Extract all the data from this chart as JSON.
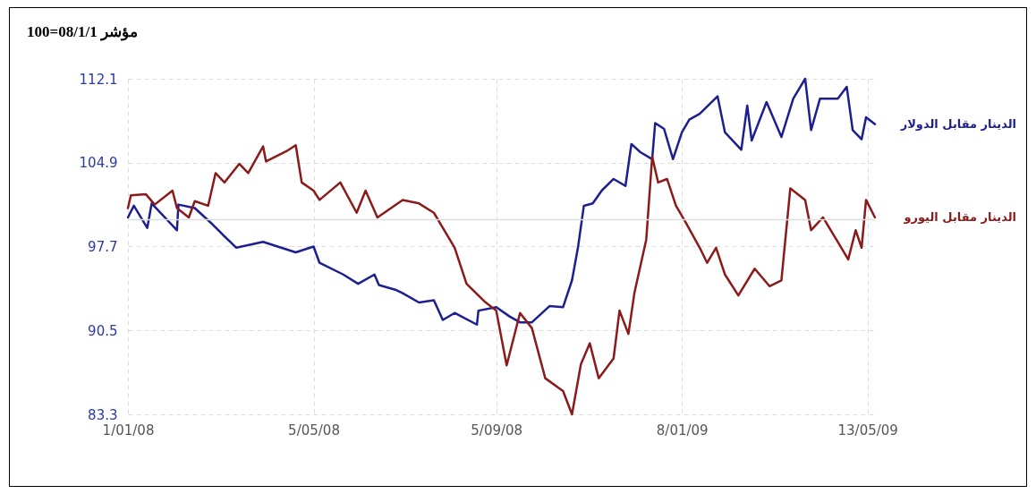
{
  "chart_data": {
    "type": "line",
    "title": "100=08/1/1 مؤشر",
    "xlim": [
      "2008-01-01",
      "2009-05-18"
    ],
    "xticks": [
      {
        "value": "2008-01-01",
        "label": "1/01/08"
      },
      {
        "value": "2008-05-05",
        "label": "5/05/08"
      },
      {
        "value": "2008-09-05",
        "label": "5/09/08"
      },
      {
        "value": "2009-01-08",
        "label": "8/01/09"
      },
      {
        "value": "2009-05-13",
        "label": "13/05/09"
      }
    ],
    "ylim": [
      83.3,
      112.1
    ],
    "yticks": [
      83.3,
      90.5,
      97.7,
      104.9,
      112.1
    ],
    "grid": true,
    "legend": "right",
    "line_style": "solid",
    "ref_lines": [
      {
        "axis": "y",
        "value": 100,
        "color": "#dddddd"
      }
    ],
    "series": [
      {
        "name": "الدينار مقابل الدولار",
        "color": "#1c1f8f",
        "x": [
          "2008-01-01",
          "2008-01-05",
          "2008-01-14",
          "2008-01-17",
          "2008-02-03",
          "2008-02-04",
          "2008-02-15",
          "2008-02-27",
          "2008-03-05",
          "2008-03-14",
          "2008-04-01",
          "2008-04-23",
          "2008-05-05",
          "2008-05-09",
          "2008-05-25",
          "2008-06-04",
          "2008-06-15",
          "2008-06-18",
          "2008-06-29",
          "2008-07-04",
          "2008-07-15",
          "2008-07-25",
          "2008-07-31",
          "2008-08-08",
          "2008-08-23",
          "2008-08-24",
          "2008-09-05",
          "2008-09-14",
          "2008-09-21",
          "2008-09-29",
          "2008-10-11",
          "2008-10-20",
          "2008-10-26",
          "2008-10-30",
          "2008-11-03",
          "2008-11-09",
          "2008-11-15",
          "2008-11-23",
          "2008-12-01",
          "2008-12-05",
          "2008-12-11",
          "2008-12-19",
          "2008-12-21",
          "2008-12-27",
          "2009-01-02",
          "2009-01-08",
          "2009-01-13",
          "2009-01-20",
          "2009-02-01",
          "2009-02-06",
          "2009-02-17",
          "2009-02-21",
          "2009-02-24",
          "2009-03-06",
          "2009-03-16",
          "2009-03-24",
          "2009-04-01",
          "2009-04-05",
          "2009-04-11",
          "2009-04-23",
          "2009-04-29",
          "2009-05-03",
          "2009-05-09",
          "2009-05-12",
          "2009-05-18"
        ],
        "values": [
          100.2,
          101.2,
          99.3,
          101.4,
          99.1,
          101.3,
          101.0,
          99.6,
          98.7,
          97.6,
          98.1,
          97.2,
          97.7,
          96.3,
          95.3,
          94.5,
          95.3,
          94.4,
          94.0,
          93.7,
          92.9,
          93.1,
          91.4,
          92.0,
          91.0,
          92.2,
          92.5,
          91.7,
          91.2,
          91.2,
          92.6,
          92.5,
          94.8,
          97.6,
          101.2,
          101.4,
          102.5,
          103.5,
          102.9,
          106.5,
          105.8,
          105.2,
          108.3,
          107.8,
          105.2,
          107.5,
          108.6,
          109.1,
          110.6,
          107.5,
          106.0,
          109.8,
          106.8,
          110.1,
          107.1,
          110.4,
          112.1,
          107.7,
          110.4,
          110.4,
          111.4,
          107.7,
          106.9,
          108.8,
          108.2
        ]
      },
      {
        "name": "الدينار مقابل اليورو",
        "color": "#8b1a1a",
        "x": [
          "2008-01-01",
          "2008-01-03",
          "2008-01-13",
          "2008-01-19",
          "2008-01-31",
          "2008-02-03",
          "2008-02-11",
          "2008-02-15",
          "2008-02-24",
          "2008-02-29",
          "2008-03-06",
          "2008-03-16",
          "2008-03-22",
          "2008-04-01",
          "2008-04-03",
          "2008-04-17",
          "2008-04-23",
          "2008-04-27",
          "2008-05-05",
          "2008-05-09",
          "2008-05-23",
          "2008-06-03",
          "2008-06-09",
          "2008-06-17",
          "2008-07-04",
          "2008-07-15",
          "2008-07-25",
          "2008-08-08",
          "2008-08-16",
          "2008-08-28",
          "2008-09-05",
          "2008-09-12",
          "2008-09-21",
          "2008-09-29",
          "2008-10-08",
          "2008-10-20",
          "2008-10-26",
          "2008-11-01",
          "2008-11-07",
          "2008-11-13",
          "2008-11-23",
          "2008-11-27",
          "2008-12-03",
          "2008-12-07",
          "2008-12-15",
          "2008-12-19",
          "2008-12-23",
          "2008-12-29",
          "2009-01-04",
          "2009-01-10",
          "2009-01-20",
          "2009-01-25",
          "2009-01-31",
          "2009-02-06",
          "2009-02-15",
          "2009-02-26",
          "2009-03-08",
          "2009-03-16",
          "2009-03-22",
          "2009-04-01",
          "2009-04-05",
          "2009-04-13",
          "2009-04-23",
          "2009-04-30",
          "2009-05-05",
          "2009-05-09",
          "2009-05-12",
          "2009-05-18"
        ],
        "values": [
          101.0,
          102.1,
          102.2,
          101.3,
          102.5,
          101.0,
          100.2,
          101.6,
          101.2,
          104.0,
          103.2,
          104.8,
          104.0,
          106.3,
          105.0,
          105.9,
          106.4,
          103.2,
          102.5,
          101.7,
          103.2,
          100.6,
          102.5,
          100.2,
          101.7,
          101.4,
          100.6,
          97.6,
          94.5,
          93.0,
          92.2,
          87.5,
          92.0,
          90.7,
          86.4,
          85.3,
          83.3,
          87.6,
          89.4,
          86.4,
          88.1,
          92.2,
          90.2,
          93.7,
          98.3,
          105.4,
          103.2,
          103.5,
          101.2,
          99.9,
          97.6,
          96.3,
          97.6,
          95.3,
          93.5,
          95.8,
          94.3,
          94.8,
          102.7,
          101.7,
          99.1,
          100.2,
          98.1,
          96.6,
          99.1,
          97.6,
          101.7,
          100.2
        ]
      }
    ]
  }
}
